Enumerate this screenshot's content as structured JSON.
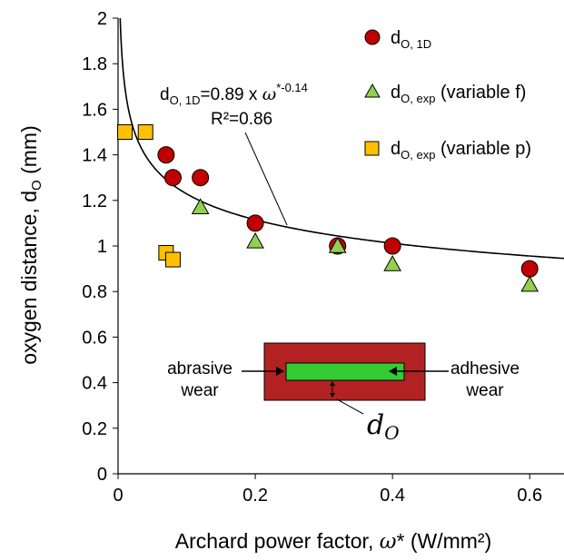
{
  "chart_data": {
    "type": "scatter",
    "title": "",
    "xlabel_text": "Archard power factor, ",
    "xlabel_symbol": "ω",
    "xlabel_unit": "* (W/mm²)",
    "ylabel_main": "oxygen distance, d",
    "ylabel_sub": "O",
    "ylabel_unit": " (mm)",
    "xlim": [
      0,
      0.65
    ],
    "ylim": [
      0,
      2
    ],
    "x_ticks": [
      0,
      0.2,
      0.4,
      0.6
    ],
    "x_tick_labels": [
      "0",
      "0.2",
      "0.4",
      "0.6"
    ],
    "y_ticks": [
      0,
      0.2,
      0.4,
      0.6,
      0.8,
      1,
      1.2,
      1.4,
      1.6,
      1.8,
      2
    ],
    "y_tick_labels": [
      "0",
      "0.2",
      "0.4",
      "0.6",
      "0.8",
      "1",
      "1.2",
      "1.4",
      "1.6",
      "1.8",
      "2"
    ],
    "grid": false,
    "legend_position": "top-right",
    "series": [
      {
        "name_main": "d",
        "name_sub": "O, 1D",
        "name_extra": "",
        "marker": "circle",
        "color": "#c00000",
        "x": [
          0.07,
          0.08,
          0.12,
          0.2,
          0.32,
          0.4,
          0.6
        ],
        "y": [
          1.4,
          1.3,
          1.3,
          1.1,
          1.0,
          1.0,
          0.9
        ]
      },
      {
        "name_main": "d",
        "name_sub": "O, exp",
        "name_extra": " (variable f)",
        "marker": "triangle",
        "color": "#92d050",
        "x": [
          0.12,
          0.2,
          0.32,
          0.4,
          0.6
        ],
        "y": [
          1.17,
          1.02,
          1.0,
          0.92,
          0.83
        ]
      },
      {
        "name_main": "d",
        "name_sub": "O, exp",
        "name_extra": " (variable p)",
        "marker": "square",
        "color": "#ffc000",
        "x": [
          0.01,
          0.04,
          0.07,
          0.08
        ],
        "y": [
          1.5,
          1.5,
          0.97,
          0.94
        ]
      }
    ],
    "fit": {
      "a": 0.89,
      "b": -0.14,
      "label_main": "d",
      "label_sub": "O, 1D",
      "label_eq": "=0.89 x ",
      "label_symbol": "ω",
      "label_exp": "*-0.14",
      "r2_label": "R²=0.86"
    },
    "inset": {
      "left_label_line1": "abrasive",
      "left_label_line2": "wear",
      "right_label_line1": "adhesive",
      "right_label_line2": "wear",
      "d_label_main": "d",
      "d_label_sub": "O",
      "outer_color": "#b22222",
      "inner_color": "#33cc33"
    }
  }
}
